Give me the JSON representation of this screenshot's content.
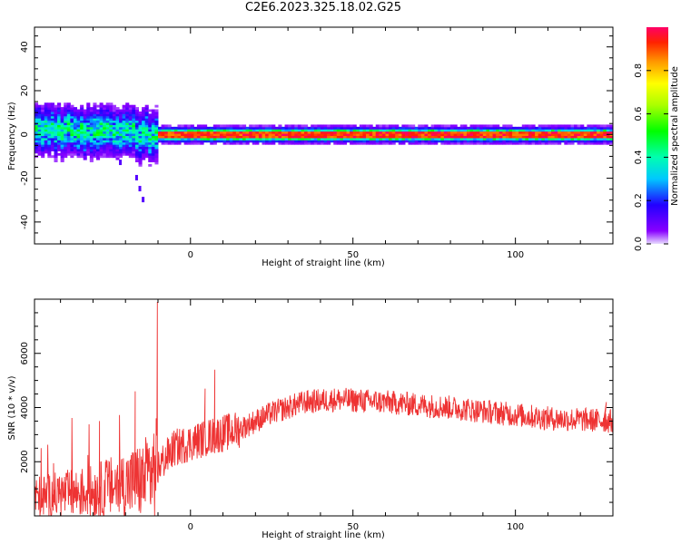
{
  "figure_title": "C2E6.2023.325.18.02.G25",
  "colors": {
    "snr_line": "#ee3333",
    "axis": "#000000",
    "background": "#ffffff"
  },
  "chart_data": [
    {
      "type": "heatmap",
      "title": "",
      "xlabel": "Height of straight line (km)",
      "ylabel": "Frequency (Hz)",
      "xlim": [
        -48,
        130
      ],
      "ylim": [
        -50,
        49
      ],
      "x_ticks": [
        0,
        50,
        100
      ],
      "y_ticks": [
        -40,
        -20,
        0,
        20,
        40
      ],
      "colorbar": {
        "label": "Normalized spectral amplitude",
        "range": [
          0,
          1
        ],
        "ticks": [
          0.0,
          0.2,
          0.4,
          0.6,
          0.8
        ],
        "colormap": "hsv-rainbow (purple low to red high)"
      },
      "description_segments": [
        {
          "x_range": [
            -48,
            -10
          ],
          "freq_center_start": 2,
          "freq_center_end": 0,
          "spread_hz": 10,
          "peak_amp": 0.55
        },
        {
          "x_range": [
            -10,
            130
          ],
          "freq_center": 0,
          "spread_hz": 3,
          "peak_amp": 1.0
        }
      ]
    },
    {
      "type": "line",
      "title": "",
      "xlabel": "Height of straight line (km)",
      "ylabel": "SNR (10 * v/v)",
      "xlim": [
        -48,
        130
      ],
      "ylim": [
        0,
        8000
      ],
      "x_ticks": [
        0,
        50,
        100
      ],
      "y_ticks": [
        2000,
        4000,
        6000
      ],
      "series": [
        {
          "trend_points": [
            {
              "x": -48,
              "y": 700
            },
            {
              "x": -30,
              "y": 900
            },
            {
              "x": -15,
              "y": 1300
            },
            {
              "x": -10,
              "y": 1800
            },
            {
              "x": -5,
              "y": 2500
            },
            {
              "x": 5,
              "y": 2900
            },
            {
              "x": 15,
              "y": 3200
            },
            {
              "x": 25,
              "y": 3800
            },
            {
              "x": 35,
              "y": 4200
            },
            {
              "x": 45,
              "y": 4300
            },
            {
              "x": 60,
              "y": 4200
            },
            {
              "x": 80,
              "y": 4000
            },
            {
              "x": 95,
              "y": 3800
            },
            {
              "x": 110,
              "y": 3600
            },
            {
              "x": 130,
              "y": 3500
            }
          ],
          "spikes": [
            {
              "x": -10.2,
              "y": 7900
            },
            {
              "x": 7.5,
              "y": 5400
            },
            {
              "x": 4.5,
              "y": 4700
            },
            {
              "x": -17,
              "y": 4600
            },
            {
              "x": -28,
              "y": 3500
            },
            {
              "x": 128,
              "y": 4200
            }
          ]
        }
      ]
    }
  ]
}
